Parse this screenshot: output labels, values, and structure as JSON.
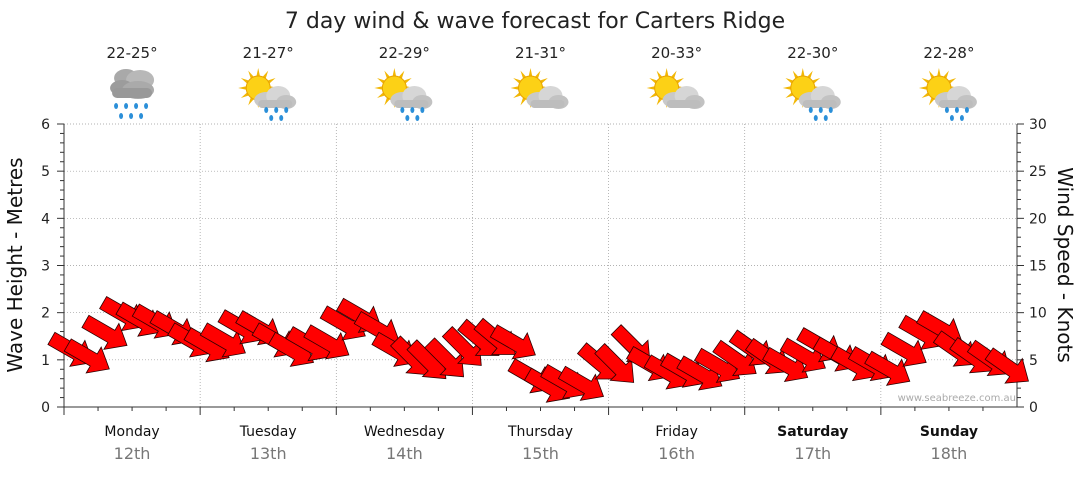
{
  "chart_data": {
    "type": "line",
    "title": "7 day wind & wave forecast for Carters Ridge",
    "ylabel_left": "Wave Height - Metres",
    "ylabel_right": "Wind Speed - Knots",
    "ylim_left": [
      0,
      6
    ],
    "ylim_right": [
      0,
      30
    ],
    "yticks_left": [
      "0",
      "1",
      "2",
      "3",
      "4",
      "5",
      "6"
    ],
    "yticks_right": [
      "0",
      "5",
      "10",
      "15",
      "20",
      "25",
      "30"
    ],
    "grid": true,
    "watermark": "www.seabreeze.com.au",
    "days": [
      {
        "day": "Monday",
        "date": "12th",
        "temp": "22-25°",
        "icon": "rain-cloud-icon",
        "bold": false
      },
      {
        "day": "Tuesday",
        "date": "13th",
        "temp": "21-27°",
        "icon": "sun-cloud-showers-icon",
        "bold": false
      },
      {
        "day": "Wednesday",
        "date": "14th",
        "temp": "22-29°",
        "icon": "sun-cloud-showers-icon",
        "bold": false
      },
      {
        "day": "Thursday",
        "date": "15th",
        "temp": "21-31°",
        "icon": "sun-cloud-icon",
        "bold": false
      },
      {
        "day": "Friday",
        "date": "16th",
        "temp": "20-33°",
        "icon": "sun-cloud-icon",
        "bold": false
      },
      {
        "day": "Saturday",
        "date": "17th",
        "temp": "22-30°",
        "icon": "sun-cloud-showers-icon",
        "bold": true
      },
      {
        "day": "Sunday",
        "date": "18th",
        "temp": "22-28°",
        "icon": "sun-cloud-showers-icon",
        "bold": true
      }
    ],
    "wind_series": {
      "name": "Wind Speed",
      "unit": "knots",
      "x_days": [
        0.0,
        0.12,
        0.25,
        0.38,
        0.5,
        0.62,
        0.75,
        0.88,
        1.0,
        1.12,
        1.25,
        1.38,
        1.5,
        1.62,
        1.75,
        1.88,
        2.0,
        2.12,
        2.25,
        2.38,
        2.5,
        2.62,
        2.75,
        2.88,
        3.0,
        3.12,
        3.25,
        3.38,
        3.5,
        3.62,
        3.75,
        3.88,
        4.0,
        4.12,
        4.25,
        4.38,
        4.5,
        4.62,
        4.75,
        4.88,
        5.0,
        5.12,
        5.25,
        5.38,
        5.5,
        5.62,
        5.75,
        5.88,
        6.0,
        6.12,
        6.25,
        6.38,
        6.5,
        6.62,
        6.75,
        6.88
      ],
      "values": [
        6.0,
        5.3,
        7.8,
        9.8,
        9.2,
        9.0,
        8.3,
        7.0,
        6.5,
        7.0,
        8.4,
        8.3,
        7.0,
        6.0,
        6.6,
        6.8,
        8.8,
        9.6,
        8.2,
        6.0,
        5.2,
        4.8,
        5.0,
        6.2,
        7.1,
        7.2,
        6.8,
        3.2,
        2.2,
        2.6,
        2.4,
        4.6,
        4.4,
        6.4,
        4.5,
        3.6,
        3.8,
        3.5,
        4.3,
        5.0,
        6.1,
        5.2,
        4.4,
        5.4,
        6.5,
        5.5,
        4.5,
        4.5,
        4.0,
        6.0,
        7.8,
        8.3,
        6.0,
        5.3,
        5.0,
        4.2
      ],
      "direction_deg": [
        300,
        300,
        300,
        300,
        300,
        300,
        300,
        300,
        300,
        300,
        300,
        300,
        300,
        300,
        300,
        300,
        300,
        300,
        300,
        300,
        315,
        315,
        315,
        315,
        310,
        310,
        300,
        300,
        300,
        300,
        300,
        310,
        315,
        315,
        300,
        300,
        300,
        300,
        300,
        305,
        305,
        305,
        300,
        300,
        300,
        300,
        300,
        300,
        300,
        300,
        300,
        300,
        305,
        305,
        305,
        305
      ]
    }
  }
}
